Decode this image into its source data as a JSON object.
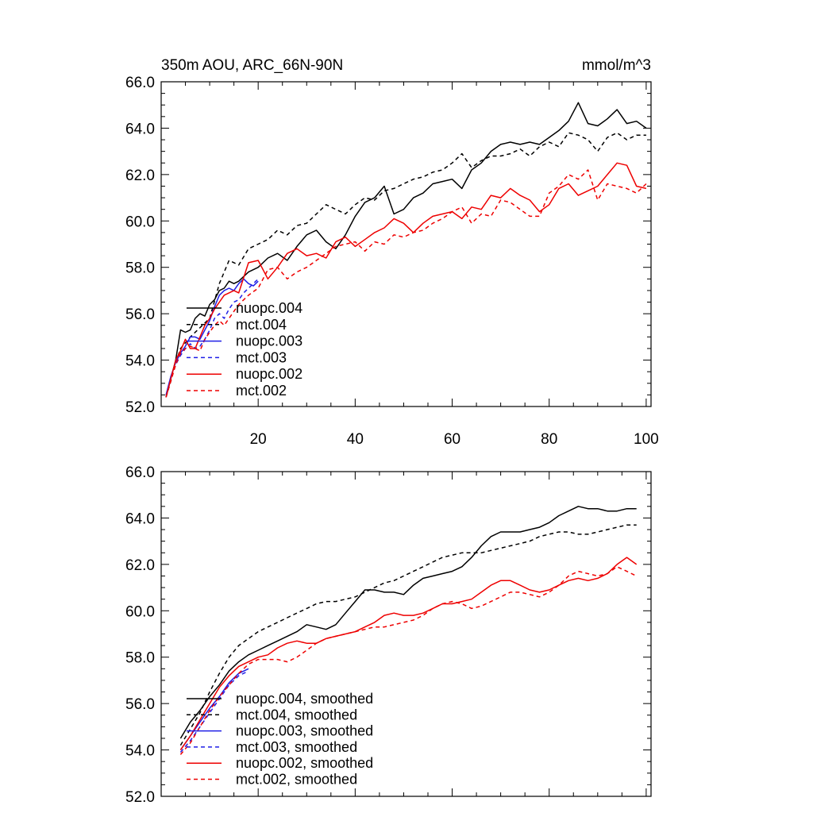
{
  "chart_data": [
    {
      "type": "line",
      "title_left": "350m AOU, ARC_66N-90N",
      "title_right": "mmol/m^3",
      "xlim": [
        0,
        101
      ],
      "ylim": [
        52,
        66
      ],
      "x_ticks": [
        20,
        40,
        60,
        80,
        100
      ],
      "x_tick_labels": [
        "20",
        "40",
        "60",
        "80",
        "100"
      ],
      "y_ticks": [
        52,
        54,
        56,
        58,
        60,
        62,
        64,
        66
      ],
      "y_tick_labels": [
        "52.0",
        "54.0",
        "56.0",
        "58.0",
        "60.0",
        "62.0",
        "64.0",
        "66.0"
      ],
      "grid": false,
      "legend_position": "bottom-left",
      "series": [
        {
          "name": "nuopc.004",
          "color": "#000000",
          "dash": "solid",
          "x": [
            1,
            2,
            3,
            4,
            5,
            6,
            7,
            8,
            9,
            10,
            11,
            12,
            13,
            14,
            15,
            16,
            18,
            20,
            22,
            24,
            26,
            28,
            30,
            32,
            34,
            36,
            38,
            40,
            42,
            44,
            46,
            48,
            50,
            52,
            54,
            56,
            58,
            60,
            62,
            64,
            66,
            68,
            70,
            72,
            74,
            76,
            78,
            80,
            82,
            84,
            86,
            88,
            90,
            92,
            94,
            96,
            98,
            100
          ],
          "y": [
            52.4,
            53.2,
            54.0,
            55.3,
            55.2,
            55.3,
            55.8,
            56.0,
            55.9,
            56.4,
            56.6,
            57.0,
            57.1,
            57.4,
            57.3,
            57.4,
            57.8,
            58.0,
            58.4,
            58.6,
            58.3,
            58.9,
            59.4,
            59.6,
            59.1,
            58.8,
            59.4,
            60.2,
            60.8,
            61.0,
            61.5,
            60.3,
            60.5,
            61.0,
            61.2,
            61.6,
            61.7,
            61.8,
            61.4,
            62.2,
            62.5,
            63.0,
            63.3,
            63.4,
            63.3,
            63.4,
            63.3,
            63.6,
            63.9,
            64.3,
            65.1,
            64.2,
            64.1,
            64.4,
            64.8,
            64.2,
            64.3,
            64.0
          ]
        },
        {
          "name": "mct.004",
          "color": "#000000",
          "dash": "dashed",
          "x": [
            1,
            2,
            3,
            4,
            6,
            8,
            10,
            12,
            14,
            16,
            18,
            20,
            22,
            24,
            26,
            28,
            30,
            32,
            34,
            36,
            38,
            40,
            42,
            44,
            46,
            48,
            50,
            52,
            54,
            56,
            58,
            60,
            62,
            64,
            66,
            68,
            70,
            72,
            74,
            76,
            78,
            80,
            82,
            84,
            86,
            88,
            90,
            92,
            94,
            96,
            98,
            100
          ],
          "y": [
            52.4,
            53.1,
            53.9,
            54.5,
            55.0,
            55.4,
            55.8,
            57.3,
            58.3,
            58.1,
            58.8,
            59.0,
            59.2,
            59.6,
            59.4,
            59.8,
            59.9,
            60.3,
            60.7,
            60.5,
            60.3,
            60.7,
            61.0,
            60.9,
            61.3,
            61.4,
            61.6,
            61.8,
            61.9,
            62.1,
            62.2,
            62.5,
            62.9,
            62.3,
            62.6,
            62.8,
            62.8,
            62.9,
            63.1,
            62.8,
            63.2,
            63.4,
            63.2,
            63.8,
            63.7,
            63.5,
            63.0,
            63.6,
            63.8,
            63.5,
            63.7,
            63.7
          ]
        },
        {
          "name": "nuopc.003",
          "color": "#1f1fe6",
          "dash": "solid",
          "x": [
            1,
            2,
            3,
            4,
            5,
            6,
            7,
            8,
            9,
            10,
            11,
            12,
            13,
            14,
            15,
            16,
            17,
            18,
            19,
            20
          ],
          "y": [
            52.5,
            53.3,
            53.9,
            54.3,
            54.6,
            55.0,
            55.0,
            54.9,
            55.3,
            55.7,
            56.3,
            56.8,
            57.0,
            57.1,
            57.0,
            57.3,
            57.5,
            57.3,
            57.2,
            57.4
          ]
        },
        {
          "name": "mct.003",
          "color": "#1f1fe6",
          "dash": "dashed",
          "x": [
            1,
            2,
            3,
            4,
            5,
            6,
            7,
            8,
            9,
            10,
            11,
            12,
            13,
            14,
            15,
            16,
            17,
            18,
            19,
            20
          ],
          "y": [
            52.4,
            53.2,
            53.8,
            54.2,
            54.5,
            54.7,
            54.5,
            54.6,
            54.9,
            55.3,
            55.8,
            56.0,
            55.8,
            56.2,
            56.5,
            56.6,
            56.9,
            57.1,
            57.3,
            57.5
          ]
        },
        {
          "name": "nuopc.002",
          "color": "#ee0000",
          "dash": "solid",
          "x": [
            1,
            2,
            3,
            4,
            5,
            6,
            7,
            8,
            9,
            10,
            11,
            12,
            13,
            14,
            15,
            16,
            18,
            20,
            22,
            24,
            26,
            28,
            30,
            32,
            34,
            36,
            38,
            40,
            42,
            44,
            46,
            48,
            50,
            52,
            54,
            56,
            58,
            60,
            62,
            64,
            66,
            68,
            70,
            72,
            74,
            76,
            78,
            80,
            82,
            84,
            86,
            88,
            90,
            92,
            94,
            96,
            98,
            100
          ],
          "y": [
            52.4,
            53.2,
            54.0,
            54.4,
            54.9,
            54.5,
            54.5,
            55.0,
            55.5,
            55.8,
            56.2,
            56.5,
            56.8,
            56.9,
            57.0,
            56.9,
            58.2,
            58.3,
            57.5,
            58.0,
            58.6,
            58.8,
            58.5,
            58.6,
            58.4,
            59.1,
            59.3,
            58.9,
            59.2,
            59.5,
            59.7,
            60.1,
            59.9,
            59.5,
            59.9,
            60.2,
            60.3,
            60.4,
            60.1,
            60.6,
            60.5,
            61.1,
            61.0,
            61.4,
            61.1,
            60.9,
            60.4,
            60.7,
            61.4,
            61.6,
            61.1,
            61.3,
            61.5,
            62.0,
            62.5,
            62.4,
            61.5,
            61.4
          ]
        },
        {
          "name": "mct.002",
          "color": "#ee0000",
          "dash": "dashed",
          "x": [
            1,
            2,
            3,
            4,
            5,
            6,
            7,
            8,
            9,
            10,
            11,
            12,
            13,
            14,
            15,
            16,
            18,
            20,
            22,
            24,
            26,
            28,
            30,
            32,
            34,
            36,
            38,
            40,
            42,
            44,
            46,
            48,
            50,
            52,
            54,
            56,
            58,
            60,
            62,
            64,
            66,
            68,
            70,
            72,
            74,
            76,
            78,
            80,
            82,
            84,
            86,
            88,
            90,
            92,
            94,
            96,
            98,
            100
          ],
          "y": [
            52.4,
            53.1,
            53.8,
            54.3,
            54.5,
            54.6,
            54.5,
            54.4,
            54.9,
            55.2,
            55.5,
            55.7,
            55.5,
            55.8,
            56.1,
            56.4,
            56.8,
            57.1,
            57.9,
            58.0,
            57.5,
            57.8,
            58.0,
            58.3,
            58.6,
            58.9,
            59.0,
            59.1,
            58.7,
            59.1,
            59.0,
            59.4,
            59.3,
            59.5,
            59.6,
            59.9,
            60.1,
            60.4,
            60.6,
            59.9,
            60.3,
            60.2,
            60.9,
            60.8,
            60.5,
            60.2,
            60.2,
            61.2,
            61.5,
            62.0,
            61.8,
            62.2,
            60.9,
            61.6,
            61.5,
            61.4,
            61.2,
            61.6
          ]
        }
      ]
    },
    {
      "type": "line",
      "xlim": [
        0,
        101
      ],
      "ylim": [
        52,
        66
      ],
      "x_ticks": [
        20,
        40,
        60,
        80,
        100
      ],
      "y_ticks": [
        52,
        54,
        56,
        58,
        60,
        62,
        64,
        66
      ],
      "y_tick_labels": [
        "52.0",
        "54.0",
        "56.0",
        "58.0",
        "60.0",
        "62.0",
        "64.0",
        "66.0"
      ],
      "grid": false,
      "legend_position": "bottom-left",
      "series": [
        {
          "name": "nuopc.004, smoothed",
          "color": "#000000",
          "dash": "solid",
          "x": [
            4,
            6,
            8,
            10,
            12,
            14,
            16,
            18,
            20,
            22,
            24,
            26,
            28,
            30,
            32,
            34,
            36,
            38,
            40,
            42,
            44,
            46,
            48,
            50,
            52,
            54,
            56,
            58,
            60,
            62,
            64,
            66,
            68,
            70,
            72,
            74,
            76,
            78,
            80,
            82,
            84,
            86,
            88,
            90,
            92,
            94,
            96,
            98
          ],
          "y": [
            54.5,
            55.2,
            55.7,
            56.3,
            56.8,
            57.4,
            57.8,
            58.1,
            58.3,
            58.5,
            58.7,
            58.9,
            59.1,
            59.4,
            59.3,
            59.2,
            59.4,
            59.9,
            60.4,
            60.9,
            60.9,
            60.8,
            60.8,
            60.7,
            61.1,
            61.4,
            61.5,
            61.6,
            61.7,
            61.9,
            62.3,
            62.8,
            63.2,
            63.4,
            63.4,
            63.4,
            63.5,
            63.6,
            63.8,
            64.1,
            64.3,
            64.5,
            64.4,
            64.4,
            64.3,
            64.3,
            64.4,
            64.4
          ]
        },
        {
          "name": "mct.004, smoothed",
          "color": "#000000",
          "dash": "dashed",
          "x": [
            4,
            6,
            8,
            10,
            12,
            14,
            16,
            18,
            20,
            22,
            24,
            26,
            28,
            30,
            32,
            34,
            36,
            38,
            40,
            42,
            44,
            46,
            48,
            50,
            52,
            54,
            56,
            58,
            60,
            62,
            64,
            66,
            68,
            70,
            72,
            74,
            76,
            78,
            80,
            82,
            84,
            86,
            88,
            90,
            92,
            94,
            96,
            98
          ],
          "y": [
            54.2,
            54.9,
            55.6,
            56.5,
            57.3,
            58.0,
            58.5,
            58.8,
            59.1,
            59.3,
            59.5,
            59.7,
            59.9,
            60.1,
            60.3,
            60.4,
            60.4,
            60.5,
            60.6,
            60.8,
            61.0,
            61.2,
            61.3,
            61.5,
            61.7,
            61.9,
            62.1,
            62.3,
            62.4,
            62.5,
            62.5,
            62.5,
            62.6,
            62.7,
            62.8,
            62.9,
            63.0,
            63.2,
            63.3,
            63.4,
            63.4,
            63.3,
            63.3,
            63.4,
            63.5,
            63.6,
            63.7,
            63.7
          ]
        },
        {
          "name": "nuopc.003, smoothed",
          "color": "#1f1fe6",
          "dash": "solid",
          "x": [
            4,
            6,
            8,
            10,
            12,
            14,
            16,
            18
          ],
          "y": [
            54.0,
            54.6,
            55.2,
            55.8,
            56.3,
            56.9,
            57.3,
            57.5
          ]
        },
        {
          "name": "mct.003, smoothed",
          "color": "#1f1fe6",
          "dash": "dashed",
          "x": [
            4,
            6,
            8,
            10,
            12,
            14,
            16,
            18
          ],
          "y": [
            53.9,
            54.4,
            55.0,
            55.6,
            56.2,
            56.8,
            57.2,
            57.4
          ]
        },
        {
          "name": "nuopc.002, smoothed",
          "color": "#ee0000",
          "dash": "solid",
          "x": [
            4,
            6,
            8,
            10,
            12,
            14,
            16,
            18,
            20,
            22,
            24,
            26,
            28,
            30,
            32,
            34,
            36,
            38,
            40,
            42,
            44,
            46,
            48,
            50,
            52,
            54,
            56,
            58,
            60,
            62,
            64,
            66,
            68,
            70,
            72,
            74,
            76,
            78,
            80,
            82,
            84,
            86,
            88,
            90,
            92,
            94,
            96,
            98
          ],
          "y": [
            54.0,
            54.6,
            55.3,
            56.0,
            56.7,
            57.2,
            57.6,
            57.8,
            58.0,
            58.1,
            58.4,
            58.6,
            58.7,
            58.6,
            58.6,
            58.8,
            58.9,
            59.0,
            59.1,
            59.3,
            59.5,
            59.8,
            59.9,
            59.8,
            59.8,
            59.9,
            60.1,
            60.3,
            60.3,
            60.4,
            60.5,
            60.8,
            61.1,
            61.3,
            61.3,
            61.1,
            60.9,
            60.8,
            60.9,
            61.1,
            61.3,
            61.4,
            61.3,
            61.4,
            61.6,
            62.0,
            62.3,
            62.0
          ]
        },
        {
          "name": "mct.002, smoothed",
          "color": "#ee0000",
          "dash": "dashed",
          "x": [
            4,
            6,
            8,
            10,
            12,
            14,
            16,
            18,
            20,
            22,
            24,
            26,
            28,
            30,
            32,
            34,
            36,
            38,
            40,
            42,
            44,
            46,
            48,
            50,
            52,
            54,
            56,
            58,
            60,
            62,
            64,
            66,
            68,
            70,
            72,
            74,
            76,
            78,
            80,
            82,
            84,
            86,
            88,
            90,
            92,
            94,
            96,
            98
          ],
          "y": [
            53.8,
            54.3,
            55.0,
            55.7,
            56.3,
            56.8,
            57.3,
            57.7,
            57.9,
            57.9,
            57.9,
            57.8,
            58.0,
            58.3,
            58.6,
            58.8,
            58.9,
            59.0,
            59.1,
            59.2,
            59.3,
            59.3,
            59.4,
            59.5,
            59.6,
            59.8,
            60.1,
            60.3,
            60.4,
            60.3,
            60.1,
            60.2,
            60.4,
            60.6,
            60.8,
            60.8,
            60.7,
            60.6,
            60.8,
            61.1,
            61.5,
            61.7,
            61.6,
            61.5,
            61.6,
            61.9,
            61.7,
            61.5
          ]
        }
      ]
    }
  ]
}
